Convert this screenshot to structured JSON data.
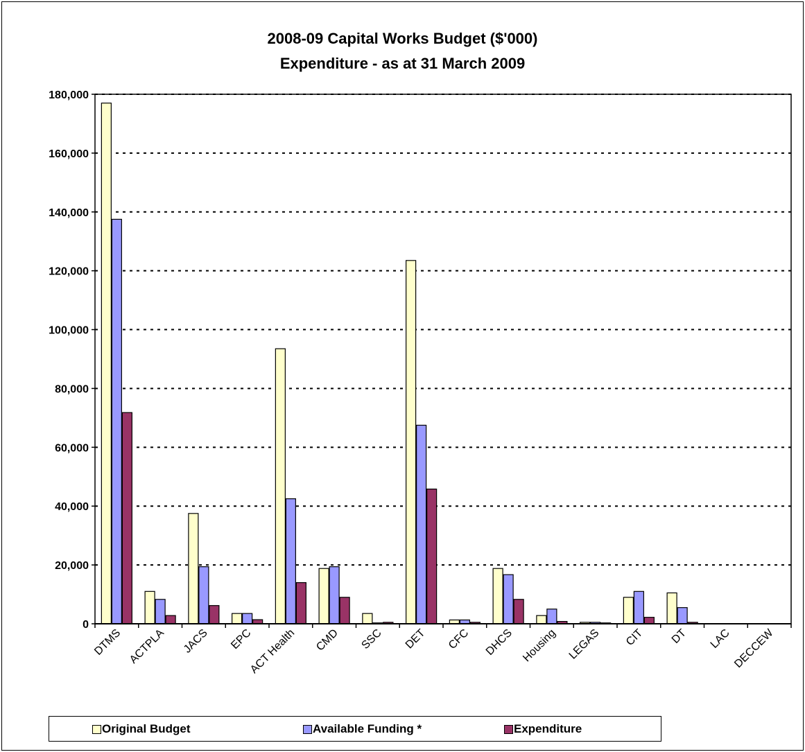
{
  "chart_data": {
    "type": "bar",
    "title": "2008-09 Capital Works Budget ($'000)",
    "subtitle": "Expenditure - as at 31 March 2009",
    "xlabel": "",
    "ylabel": "",
    "ylim": [
      0,
      180000
    ],
    "yticks": [
      "180,000",
      "160,000",
      "140,000",
      "120,000",
      "100,000",
      "80,000",
      "60,000",
      "40,000",
      "20,000",
      "0"
    ],
    "grid": true,
    "legend_position": "bottom",
    "categories": [
      "DTMS",
      "ACTPLA",
      "JACS",
      "EPC",
      "ACT Health",
      "CMD",
      "SSC",
      "DET",
      "CFC",
      "DHCS",
      "Housing",
      "LEGAS",
      "CIT",
      "DT",
      "LAC",
      "DECCEW"
    ],
    "series": [
      {
        "name": "Original Budget",
        "color": "#FFFFCC",
        "values": [
          177000,
          11000,
          37500,
          3500,
          93500,
          18800,
          3500,
          123500,
          1300,
          18800,
          2800,
          500,
          9000,
          10500,
          0,
          0
        ]
      },
      {
        "name": "Available Funding *",
        "color": "#9999FF",
        "values": [
          137500,
          8300,
          19400,
          3500,
          42500,
          19400,
          300,
          67500,
          1300,
          16700,
          5000,
          500,
          11000,
          5500,
          0,
          0
        ]
      },
      {
        "name": "Expenditure",
        "color": "#993366",
        "values": [
          71800,
          2800,
          6200,
          1400,
          14000,
          9000,
          500,
          45800,
          500,
          8300,
          800,
          300,
          2200,
          500,
          0,
          0
        ]
      }
    ]
  }
}
